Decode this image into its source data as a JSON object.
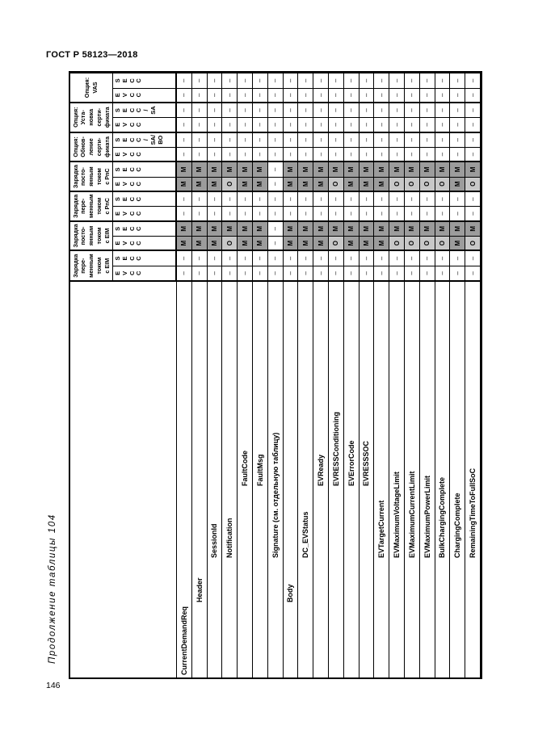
{
  "page": {
    "doc_header": "ГОСТ Р 58123—2018",
    "table_caption": "Продолжение таблицы 104",
    "page_number": "146"
  },
  "table": {
    "value_legend": {
      "mandatory": "M",
      "optional": "O",
      "not_applicable": "–"
    },
    "colors": {
      "mandatory_bg": "#9c9c9c",
      "optional_bg": "#c8c8c8",
      "grid_line": "#000000"
    },
    "groups": [
      {
        "label_lines": [
          "Зарядка",
          "пере-",
          "менным",
          "током",
          "с EIM"
        ],
        "sub": [
          {
            "label": "EVCC",
            "stack": [
              "E",
              "V",
              "C",
              "C"
            ]
          },
          {
            "label": "SECC",
            "stack": [
              "S",
              "E",
              "C",
              "C"
            ]
          }
        ]
      },
      {
        "label_lines": [
          "Зарядка",
          "посто-",
          "янным",
          "током",
          "с EIM"
        ],
        "sub": [
          {
            "label": "EVCC",
            "stack": [
              "E",
              "V",
              "C",
              "C"
            ]
          },
          {
            "label": "SECC",
            "stack": [
              "S",
              "E",
              "C",
              "C"
            ]
          }
        ]
      },
      {
        "label_lines": [
          "Зарядка",
          "пере-",
          "менным",
          "током",
          "с PnC"
        ],
        "sub": [
          {
            "label": "EVCC",
            "stack": [
              "E",
              "V",
              "C",
              "C"
            ]
          },
          {
            "label": "SECC",
            "stack": [
              "S",
              "E",
              "C",
              "C"
            ]
          }
        ]
      },
      {
        "label_lines": [
          "Зарядка",
          "посто-",
          "янным",
          "током",
          "с PnC"
        ],
        "sub": [
          {
            "label": "EVCC",
            "stack": [
              "E",
              "V",
              "C",
              "C"
            ]
          },
          {
            "label": "SECC",
            "stack": [
              "S",
              "E",
              "C",
              "C"
            ]
          }
        ]
      },
      {
        "label_lines": [
          "Опция:",
          "Обнов-",
          "ление",
          "серти-",
          "фиката"
        ],
        "sub": [
          {
            "label": "EVCC",
            "stack": [
              "E",
              "V",
              "C",
              "C"
            ]
          },
          {
            "label": "SECC / SA/ ВО",
            "stack": [
              "S",
              "E",
              "C",
              "C",
              "/",
              "SA/",
              "ВО"
            ]
          }
        ]
      },
      {
        "label_lines": [
          "Опция:",
          "Уста-",
          "новка",
          "серти-",
          "фиката"
        ],
        "sub": [
          {
            "label": "EVCC",
            "stack": [
              "E",
              "V",
              "C",
              "C"
            ]
          },
          {
            "label": "SECC / SA",
            "stack": [
              "S",
              "E",
              "C",
              "C",
              "/",
              "SA"
            ]
          }
        ]
      },
      {
        "label_lines": [
          "Опция:",
          "VAS"
        ],
        "sub": [
          {
            "label": "EVCC",
            "stack": [
              "E",
              "V",
              "C",
              "C"
            ]
          },
          {
            "label": "SECC",
            "stack": [
              "S",
              "E",
              "C",
              "C"
            ]
          }
        ]
      }
    ],
    "messages": [
      {
        "name": "CurrentDemandReq",
        "level": 0,
        "cells": [
          "–",
          "–",
          "M",
          "M",
          "–",
          "–",
          "M",
          "M",
          "–",
          "–",
          "–",
          "–",
          "–",
          "–"
        ]
      },
      {
        "name": "Header",
        "level": 1,
        "cells": [
          "–",
          "–",
          "M",
          "M",
          "–",
          "–",
          "M",
          "M",
          "–",
          "–",
          "–",
          "–",
          "–",
          "–"
        ]
      },
      {
        "name": "SessionId",
        "level": 2,
        "cells": [
          "–",
          "–",
          "M",
          "M",
          "–",
          "–",
          "M",
          "M",
          "–",
          "–",
          "–",
          "–",
          "–",
          "–"
        ]
      },
      {
        "name": "Notification",
        "level": 2,
        "cells": [
          "–",
          "–",
          "O",
          "M",
          "–",
          "–",
          "O",
          "M",
          "–",
          "–",
          "–",
          "–",
          "–",
          "–"
        ]
      },
      {
        "name": "FaultCode",
        "level": 3,
        "cells": [
          "–",
          "–",
          "M",
          "M",
          "–",
          "–",
          "M",
          "M",
          "–",
          "–",
          "–",
          "–",
          "–",
          "–"
        ]
      },
      {
        "name": "FaultMsg",
        "level": 3,
        "cells": [
          "–",
          "–",
          "M",
          "M",
          "–",
          "–",
          "M",
          "M",
          "–",
          "–",
          "–",
          "–",
          "–",
          "–"
        ]
      },
      {
        "name": "Signature (см. отдельную таблицу)",
        "level": 2,
        "cells": [
          "–",
          "–",
          "–",
          "–",
          "–",
          "–",
          "–",
          "–",
          "–",
          "–",
          "–",
          "–",
          "–",
          "–"
        ]
      },
      {
        "name": "Body",
        "level": 1,
        "cells": [
          "–",
          "–",
          "M",
          "M",
          "–",
          "–",
          "M",
          "M",
          "–",
          "–",
          "–",
          "–",
          "–",
          "–"
        ]
      },
      {
        "name": "DC_EVStatus",
        "level": 2,
        "cells": [
          "–",
          "–",
          "M",
          "M",
          "–",
          "–",
          "M",
          "M",
          "–",
          "–",
          "–",
          "–",
          "–",
          "–"
        ]
      },
      {
        "name": "EVReady",
        "level": 3,
        "cells": [
          "–",
          "–",
          "M",
          "M",
          "–",
          "–",
          "M",
          "M",
          "–",
          "–",
          "–",
          "–",
          "–",
          "–"
        ]
      },
      {
        "name": "EVRESSConditioning",
        "level": 3,
        "cells": [
          "–",
          "–",
          "O",
          "M",
          "–",
          "–",
          "O",
          "M",
          "–",
          "–",
          "–",
          "–",
          "–",
          "–"
        ]
      },
      {
        "name": "EVErrorCode",
        "level": 3,
        "cells": [
          "–",
          "–",
          "M",
          "M",
          "–",
          "–",
          "M",
          "M",
          "–",
          "–",
          "–",
          "–",
          "–",
          "–"
        ]
      },
      {
        "name": "EVRESSSOC",
        "level": 3,
        "cells": [
          "–",
          "–",
          "M",
          "M",
          "–",
          "–",
          "M",
          "M",
          "–",
          "–",
          "–",
          "–",
          "–",
          "–"
        ]
      },
      {
        "name": "EVTargetCurrent",
        "level": 2,
        "cells": [
          "–",
          "–",
          "M",
          "M",
          "–",
          "–",
          "M",
          "M",
          "–",
          "–",
          "–",
          "–",
          "–",
          "–"
        ]
      },
      {
        "name": "EVMaximumVoltageLimit",
        "level": 2,
        "cells": [
          "–",
          "–",
          "O",
          "M",
          "–",
          "–",
          "O",
          "M",
          "–",
          "–",
          "–",
          "–",
          "–",
          "–"
        ]
      },
      {
        "name": "EVMaximumCurrentLimit",
        "level": 2,
        "cells": [
          "–",
          "–",
          "O",
          "M",
          "–",
          "–",
          "O",
          "M",
          "–",
          "–",
          "–",
          "–",
          "–",
          "–"
        ]
      },
      {
        "name": "EVMaximumPowerLimit",
        "level": 2,
        "cells": [
          "–",
          "–",
          "O",
          "M",
          "–",
          "–",
          "O",
          "M",
          "–",
          "–",
          "–",
          "–",
          "–",
          "–"
        ]
      },
      {
        "name": "BulkChargingComplete",
        "level": 2,
        "cells": [
          "–",
          "–",
          "O",
          "M",
          "–",
          "–",
          "O",
          "M",
          "–",
          "–",
          "–",
          "–",
          "–",
          "–"
        ]
      },
      {
        "name": "ChargingComplete",
        "level": 2,
        "cells": [
          "–",
          "–",
          "M",
          "M",
          "–",
          "–",
          "M",
          "M",
          "–",
          "–",
          "–",
          "–",
          "–",
          "–"
        ]
      },
      {
        "name": "RemainingTimeToFullSoC",
        "level": 2,
        "cells": [
          "–",
          "–",
          "O",
          "M",
          "–",
          "–",
          "O",
          "M",
          "–",
          "–",
          "–",
          "–",
          "–",
          "–"
        ]
      }
    ]
  }
}
